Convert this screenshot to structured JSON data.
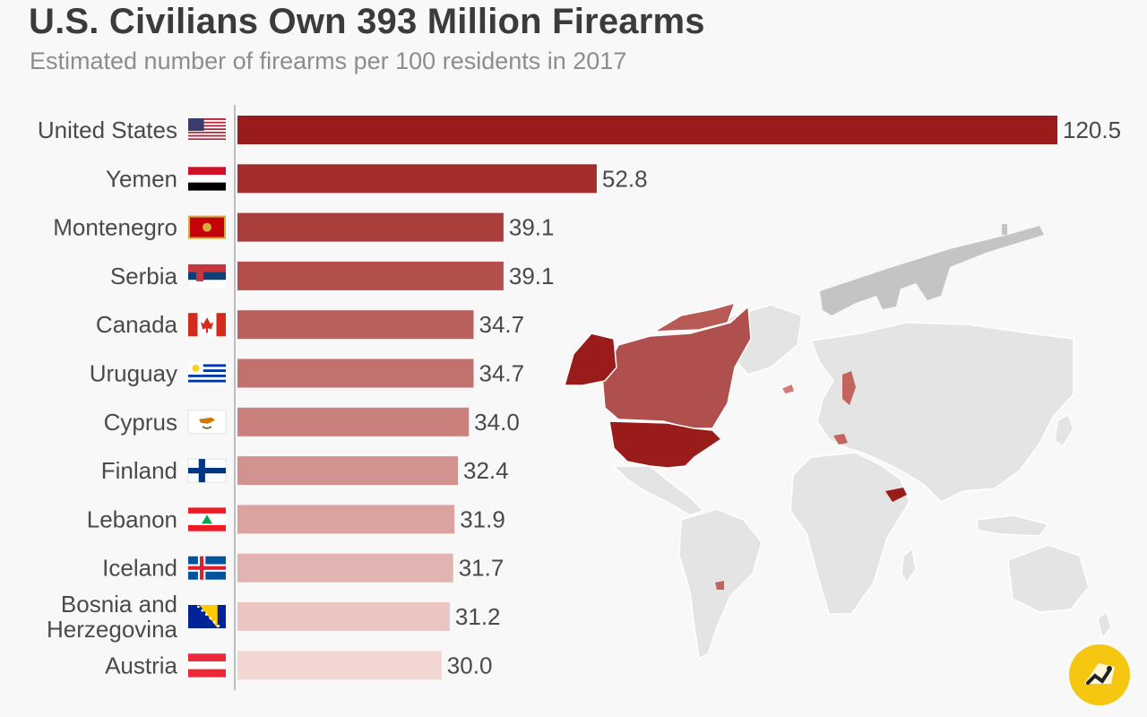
{
  "header": {
    "title": "U.S. Civilians Own 393 Million Firearms",
    "subtitle": "Estimated number of firearms per 100 residents in 2017"
  },
  "colors": {
    "bar_start": "#9a1c1a",
    "bar_end": "#f2d6d2",
    "map_land": "#e5e5e5",
    "map_highlight": "#b0504e",
    "map_us": "#9a1c1a",
    "rifle": "#c4c4c4",
    "badge": "#f5c710"
  },
  "icons": [
    "rifle-icon",
    "world-map-icon",
    "logo-badge-icon"
  ],
  "chart_data": {
    "type": "bar",
    "orientation": "horizontal",
    "title": "U.S. Civilians Own 393 Million Firearms",
    "subtitle": "Estimated number of firearms per 100 residents in 2017",
    "categories": [
      "United States",
      "Yemen",
      "Montenegro",
      "Serbia",
      "Canada",
      "Uruguay",
      "Cyprus",
      "Finland",
      "Lebanon",
      "Iceland",
      "Bosnia and Herzegovina",
      "Austria"
    ],
    "category_lines": [
      [
        "United States"
      ],
      [
        "Yemen"
      ],
      [
        "Montenegro"
      ],
      [
        "Serbia"
      ],
      [
        "Canada"
      ],
      [
        "Uruguay"
      ],
      [
        "Cyprus"
      ],
      [
        "Finland"
      ],
      [
        "Lebanon"
      ],
      [
        "Iceland"
      ],
      [
        "Bosnia and",
        "Herzegovina"
      ],
      [
        "Austria"
      ]
    ],
    "values": [
      120.5,
      52.8,
      39.1,
      39.1,
      34.7,
      34.7,
      34.0,
      32.4,
      31.9,
      31.7,
      31.2,
      30.0
    ],
    "value_labels": [
      "120.5",
      "52.8",
      "39.1",
      "39.1",
      "34.7",
      "34.7",
      "34.0",
      "32.4",
      "31.9",
      "31.7",
      "31.2",
      "30.0"
    ],
    "flags": [
      "us",
      "yemen",
      "montenegro",
      "serbia",
      "canada",
      "uruguay",
      "cyprus",
      "finland",
      "lebanon",
      "iceland",
      "bosnia",
      "austria"
    ],
    "xlim": [
      0,
      120.5
    ],
    "grid": false,
    "legend": "none"
  }
}
